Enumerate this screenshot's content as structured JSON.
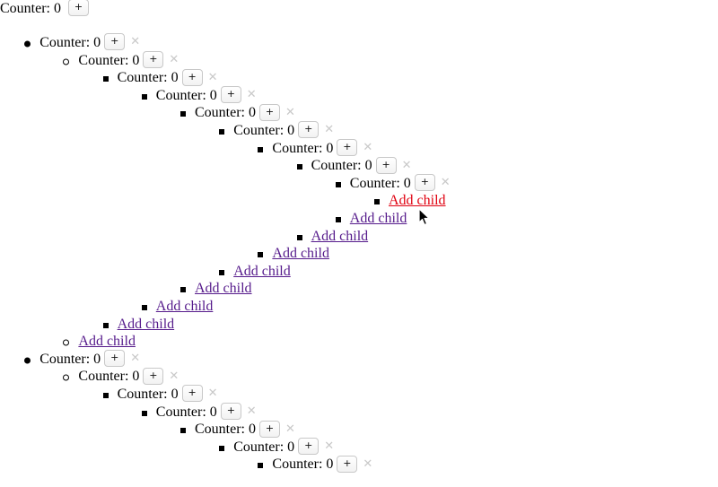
{
  "root_counter": {
    "label": "Counter: 0",
    "plus_label": "+"
  },
  "counter_label": "Counter: 0",
  "plus_label": "+",
  "remove_label": "✕",
  "add_child_label": "Add child",
  "colors": {
    "link_visited": "#551a8b",
    "link_active": "#e0000f",
    "remove_icon": "#c9c9c9"
  },
  "tree_rows": [
    {
      "kind": "counter",
      "bullet": "disc",
      "depth": 1
    },
    {
      "kind": "counter",
      "bullet": "circle",
      "depth": 2
    },
    {
      "kind": "counter",
      "bullet": "square",
      "depth": 3
    },
    {
      "kind": "counter",
      "bullet": "square",
      "depth": 4
    },
    {
      "kind": "counter",
      "bullet": "square",
      "depth": 5
    },
    {
      "kind": "counter",
      "bullet": "square",
      "depth": 6
    },
    {
      "kind": "counter",
      "bullet": "square",
      "depth": 7
    },
    {
      "kind": "counter",
      "bullet": "square",
      "depth": 8
    },
    {
      "kind": "counter",
      "bullet": "square",
      "depth": 9
    },
    {
      "kind": "add-child",
      "bullet": "square",
      "depth": 10,
      "active": true
    },
    {
      "kind": "add-child",
      "bullet": "square",
      "depth": 9
    },
    {
      "kind": "add-child",
      "bullet": "square",
      "depth": 8
    },
    {
      "kind": "add-child",
      "bullet": "square",
      "depth": 7
    },
    {
      "kind": "add-child",
      "bullet": "square",
      "depth": 6
    },
    {
      "kind": "add-child",
      "bullet": "square",
      "depth": 5
    },
    {
      "kind": "add-child",
      "bullet": "square",
      "depth": 4
    },
    {
      "kind": "add-child",
      "bullet": "square",
      "depth": 3
    },
    {
      "kind": "add-child",
      "bullet": "circle",
      "depth": 2
    },
    {
      "kind": "counter",
      "bullet": "disc",
      "depth": 1
    },
    {
      "kind": "counter",
      "bullet": "circle",
      "depth": 2
    },
    {
      "kind": "counter",
      "bullet": "square",
      "depth": 3
    },
    {
      "kind": "counter",
      "bullet": "square",
      "depth": 4
    },
    {
      "kind": "counter",
      "bullet": "square",
      "depth": 5
    },
    {
      "kind": "counter",
      "bullet": "square",
      "depth": 6
    },
    {
      "kind": "counter",
      "bullet": "square",
      "depth": 7
    }
  ]
}
